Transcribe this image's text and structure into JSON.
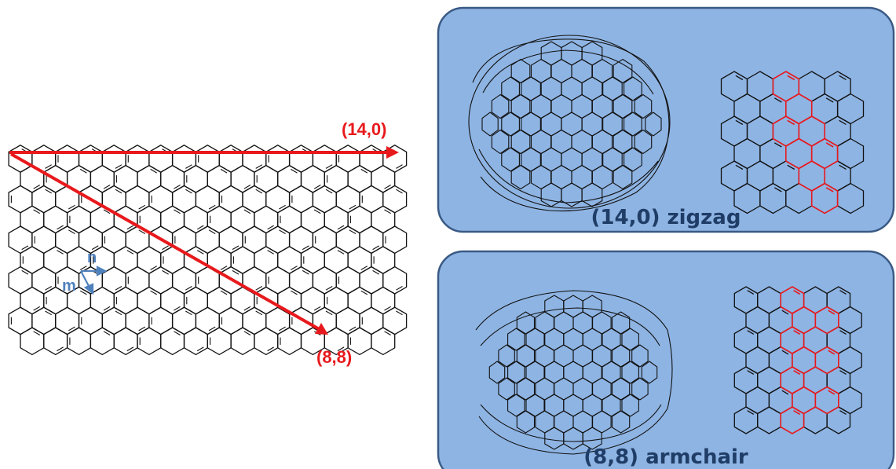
{
  "sheet": {
    "vector_zigzag_label": "(14,0)",
    "vector_armchair_label": "(8,8)",
    "axis_n_label": "n",
    "axis_m_label": "m"
  },
  "panels": [
    {
      "caption": "(14,0) zigzag"
    },
    {
      "caption": "(8,8) armchair"
    }
  ],
  "colors": {
    "vector": "#e8191c",
    "axis": "#4f81bd",
    "panel_fill": "#8eb4e3",
    "panel_stroke": "#3a5a85",
    "caption": "#1f3d66",
    "highlight": "#e8191c",
    "lattice": "#111111"
  }
}
